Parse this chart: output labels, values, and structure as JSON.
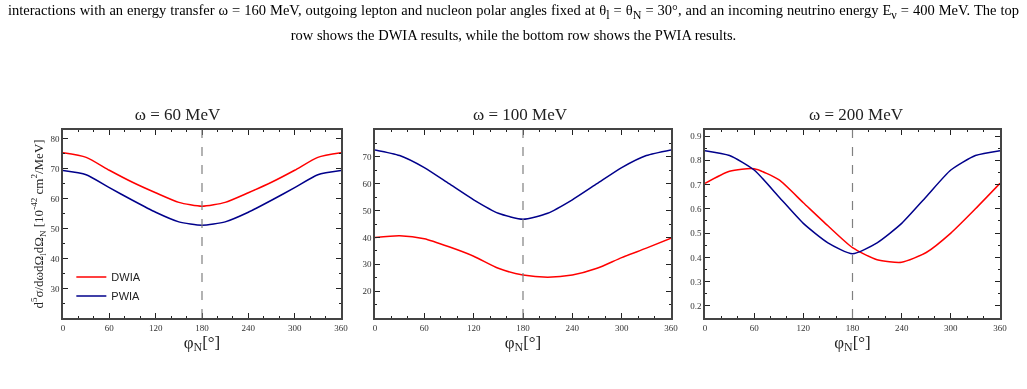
{
  "chart_data": [
    {
      "type": "line",
      "title": "ω = 60 MeV",
      "xlabel": "φ$_{N}$[°]",
      "ylabel": "d$^{5}$σ/dωdΩ$_{l}$dΩ$_{N}$ [10$^{-42}$ cm$^{2}$/MeV]",
      "annotations": [
        "interactions with an energy transfer ω = 160 MeV, outgoing lepton and nucleon polar angles fixed at θ$_{l}$ = θ$_{N}$ = 30°, and an incoming neutrino energy E$_{ν}$ = 400 MeV. The top row shows the DWIA results, while the bottom row shows the PWIA results."
      ],
      "x": [
        0,
        30,
        60,
        90,
        120,
        150,
        180,
        210,
        240,
        270,
        300,
        330,
        360
      ],
      "series": [
        {
          "name": "DWIA",
          "color": "#ff0000",
          "values": [
            75.3,
            73.8,
            69.5,
            65.5,
            62,
            58.8,
            57.5,
            58.8,
            62,
            65.5,
            69.5,
            73.8,
            75.3
          ]
        },
        {
          "name": "PWIA",
          "color": "#00008b",
          "values": [
            69.4,
            68,
            63.7,
            59.5,
            55.5,
            52.3,
            51.2,
            52.3,
            55.5,
            59.5,
            63.7,
            68,
            69.4
          ]
        }
      ],
      "xlim": [
        0,
        360
      ],
      "xticks": [
        0,
        60,
        120,
        180,
        240,
        300,
        360
      ],
      "ylim": [
        20.3,
        82.9
      ],
      "yticks": [
        30,
        40,
        50,
        60,
        70,
        80
      ],
      "ref_lines": [
        {
          "axis": "x",
          "value": 180,
          "color": "#808080",
          "line_style": "dashed"
        }
      ],
      "grid": false,
      "legend": "bottom left",
      "line_style": "solid",
      "marker": "none"
    },
    {
      "type": "line",
      "title": "ω = 100 MeV",
      "xlabel": "φ$_{N}$[°]",
      "x": [
        0,
        30,
        60,
        90,
        120,
        150,
        180,
        210,
        240,
        270,
        300,
        330,
        360
      ],
      "series": [
        {
          "color": "#ff0000",
          "values": [
            40,
            40.6,
            39.5,
            36.5,
            33,
            28.5,
            26,
            25.2,
            26,
            28.5,
            32.5,
            36,
            39.7
          ]
        },
        {
          "color": "#00008b",
          "values": [
            72.6,
            70.5,
            66,
            60,
            54,
            49,
            46.8,
            49,
            54,
            60,
            66,
            70.5,
            72.6
          ]
        }
      ],
      "xlim": [
        0,
        360
      ],
      "xticks": [
        0,
        60,
        120,
        180,
        240,
        300,
        360
      ],
      "ylim": [
        10,
        80
      ],
      "yticks": [
        20,
        30,
        40,
        50,
        60,
        70
      ],
      "ref_lines": [
        {
          "axis": "x",
          "value": 180,
          "color": "#808080",
          "line_style": "dashed"
        }
      ],
      "grid": false,
      "line_style": "solid",
      "marker": "none"
    },
    {
      "type": "line",
      "title": "ω = 200 MeV",
      "xlabel": "φ$_{N}$[°]",
      "x": [
        0,
        30,
        60,
        90,
        120,
        150,
        180,
        210,
        240,
        270,
        300,
        330,
        360
      ],
      "series": [
        {
          "color": "#ff0000",
          "values": [
            0.705,
            0.755,
            0.765,
            0.72,
            0.625,
            0.53,
            0.44,
            0.39,
            0.38,
            0.42,
            0.5,
            0.6,
            0.705
          ]
        },
        {
          "color": "#00008b",
          "values": [
            0.84,
            0.82,
            0.76,
            0.65,
            0.54,
            0.46,
            0.415,
            0.46,
            0.54,
            0.65,
            0.76,
            0.82,
            0.84
          ]
        }
      ],
      "xlim": [
        0,
        360
      ],
      "xticks": [
        0,
        60,
        120,
        180,
        240,
        300,
        360
      ],
      "ylim": [
        0.15,
        0.925
      ],
      "yticks": [
        0.2,
        0.3,
        0.4,
        0.5,
        0.6,
        0.7,
        0.8,
        0.9
      ],
      "ref_lines": [
        {
          "axis": "x",
          "value": 180,
          "color": "#808080",
          "line_style": "dashed"
        }
      ],
      "grid": false,
      "line_style": "solid",
      "marker": "none"
    }
  ]
}
